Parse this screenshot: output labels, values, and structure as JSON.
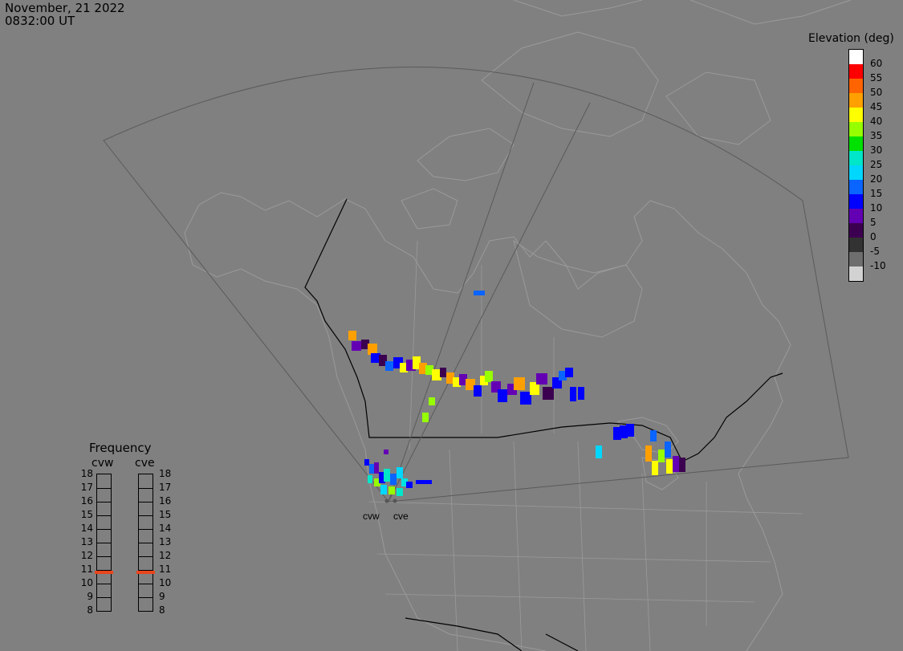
{
  "header": {
    "date": "November, 21 2022",
    "time": "0832:00 UT"
  },
  "legend": {
    "title": "Elevation (deg)",
    "levels": [
      {
        "label": "60",
        "color": "#ffffff"
      },
      {
        "label": "55",
        "color": "#ff0000"
      },
      {
        "label": "50",
        "color": "#ff6400"
      },
      {
        "label": "45",
        "color": "#ffa000"
      },
      {
        "label": "40",
        "color": "#ffff00"
      },
      {
        "label": "35",
        "color": "#96ff00"
      },
      {
        "label": "30",
        "color": "#00e100"
      },
      {
        "label": "25",
        "color": "#00e6c8"
      },
      {
        "label": "20",
        "color": "#00d7ff"
      },
      {
        "label": "15",
        "color": "#0a64ff"
      },
      {
        "label": "10",
        "color": "#0000ff"
      },
      {
        "label": "5",
        "color": "#6400b4"
      },
      {
        "label": "0",
        "color": "#3c0050"
      },
      {
        "label": "-5",
        "color": "#323232"
      },
      {
        "label": "-10",
        "color": "#6e6e6e"
      },
      {
        "label": "",
        "color": "#d2d2d2"
      }
    ]
  },
  "frequency": {
    "title": "Frequency",
    "radars": [
      {
        "name": "cvw",
        "value_mhz": 10.8
      },
      {
        "name": "cve",
        "value_mhz": 10.8
      }
    ],
    "ticks": [
      "18",
      "17",
      "16",
      "15",
      "14",
      "13",
      "12",
      "11",
      "10",
      "9",
      "8"
    ]
  },
  "sites": [
    {
      "name": "cvw"
    },
    {
      "name": "cve"
    }
  ],
  "colors": {
    "background": "#808080",
    "map_lines": "#9a9a9a",
    "border": "#000000",
    "fov": "#5a5a5a",
    "indicator": "#e8451c"
  }
}
